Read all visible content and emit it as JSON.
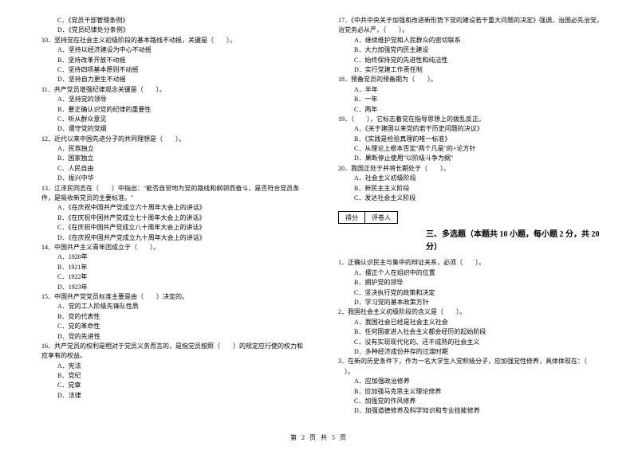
{
  "left": {
    "l1": "C．《党员干部管理条例》",
    "l2": "D．《党员纪律处分条例》",
    "q10": "10．坚持党在社会主义初级阶段的基本路线不动摇，关键是（　　）。",
    "q10a": "A．坚持以经济建设为中心不动摇",
    "q10b": "B．坚持改革开放不动摇",
    "q10c": "C．坚持四项基本原则不动摇",
    "q10d": "D．坚持自力更生不动摇",
    "q11": "11．共产党员增强纪律观念关键是（　　）。",
    "q11a": "A．坚持党的领导",
    "q11b": "B．要正确认识党的纪律的重要性",
    "q11c": "C．听从群众意见",
    "q11d": "D．遵守党的党纲",
    "q12": "12．近代以来中国先进分子的共同理想是（　　）。",
    "q12a": "A．民族独立",
    "q12b": "B．国家独立",
    "q12c": "C．人民自由",
    "q12d": "D．振兴中华",
    "q13": "13．江泽民同志在（　　）中指出：\"能否自觉地为党的路线和纲领而奋斗，是否符合党员条",
    "q13_2": "件，是吸收新党员的主要标准。\"",
    "q13a": "A．《在庆祝中国共产党成立六十周年大会上的讲话》",
    "q13b": "B．《在庆祝中国共产党成立七十周年大会上的讲话》",
    "q13c": "C．《在庆祝中国共产党成立八十周年大会上的讲话》",
    "q13d": "D．《在庆祝中国共产党成立九十周年大会上的讲话》",
    "q14": "14．中国共产主义青年团成立于（　　）。",
    "q14a": "A．1920年",
    "q14b": "B．1921年",
    "q14c": "C．1922年",
    "q14d": "D．1923年",
    "q15": "15．中国共产党党员标准主要是由（　　）决定的。",
    "q15a": "A．党的工人阶级先锋队性质",
    "q15b": "B．党的代表性",
    "q15c": "C．党的革命性",
    "q15d": "D．党的先进性",
    "q16": "16．共产党员的权利是相对于党员义务而言的，是指党员按照（　　）的规定应行使的权力和",
    "q16_2": "应享有的权益。",
    "q16a": "A．宪法",
    "q16b": "B．党纪",
    "q16c": "C．党章",
    "q16d": "D．法律"
  },
  "right": {
    "q17": "17．《中共中央关于加强和改进新形势下党的建设若干重大问题的决定》强调，治国必先治党，",
    "q17_2": "治党务必从严，（　　）。",
    "q17a": "A．继续维护党和人民群众的密切联系",
    "q17b": "B．大力加强党内民主建设",
    "q17c": "C．始终保持党的先进性和纯洁性",
    "q17d": "D．实行党建工作责任制",
    "q18": "18．预备党员的预备期为（　　）。",
    "q18a": "A．半年",
    "q18b": "B．一年",
    "q18c": "C．两年",
    "q19": "19．（　　），它标志着党在指导思想上的拨乱反正。",
    "q19a": "A．《关于建国以来党的若干历史问题的决议》",
    "q19b": "B．《实践是检验真理的唯一标准》",
    "q19c": "C．从理论上根本否定\"两个凡是\"的×论方针",
    "q19d": "D．果断停止使用\"以阶级斗争为纲\"",
    "q20": "20．我国正处于并将长期处于（　　）。",
    "q20a": "A．社会主义初级阶段",
    "q20b": "B．新民主主义阶段",
    "q20c": "C．发达社会主义阶段",
    "score_label1": "得分",
    "score_label2": "评卷人",
    "section": "三、多选题（本题共 10 小题，每小题 2 分，共 20 分）",
    "m1": "1．正确认识民主与集中的辩证关系，必须（　　）。",
    "m1a": "A．摆正个人在组织中的位置",
    "m1b": "B．拥护党的领导",
    "m1c": "C．坚决执行党的政策和决定",
    "m1d": "D．学习党的基本政策方针",
    "m2": "2．我国社会主义初级阶段的含义是（　　）。",
    "m2a": "A．我国社会已经是社会主义社会",
    "m2b": "B．任何国家进入社会主义都会经历的起始阶段",
    "m2c": "C．没有实现现代化的、还不成熟的社会主义",
    "m2d": "D．多种经济成份并存的过渡时期",
    "m3": "3．在新的历史条件下，作为一名大学生入党积极分子，应加强党性修养，具体体现在：（　",
    "m3_2": "　）。",
    "m3a": "A．应加强政治修养",
    "m3b": "B．应加强马克思主义理论修养",
    "m3c": "C．加强党的作风修养",
    "m3d": "D．加强道德修养及科学知识和专业技能修养"
  },
  "footer": "第 2 页 共 5 页"
}
